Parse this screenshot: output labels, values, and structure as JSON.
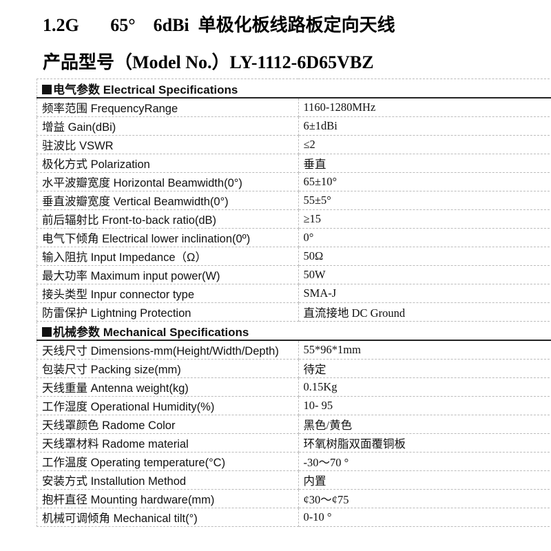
{
  "title_line1": "1.2G       65°    6dBi  单极化板线路板定向天线",
  "title_line2": "产品型号（Model No.）LY-1112-6D65VBZ",
  "electrical": {
    "header": "电气参数 Electrical Specifications",
    "rows": [
      {
        "label": "频率范围 FrequencyRange",
        "value": "1160-1280MHz"
      },
      {
        "label": "增益 Gain(dBi)",
        "value": "6±1dBi"
      },
      {
        "label": "驻波比 VSWR",
        "value": "≤2"
      },
      {
        "label": "极化方式 Polarization",
        "value": "垂直"
      },
      {
        "label": "水平波瓣宽度 Horizontal  Beamwidth(0°)",
        "value": "65±10°"
      },
      {
        "label": "垂直波瓣宽度 Vertical  Beamwidth(0°)",
        "value": "55±5°"
      },
      {
        "label": "前后辐射比 Front-to-back  ratio(dB)",
        "value": "≥15"
      },
      {
        "label": "电气下倾角 Electrical  lower  inclination(0º)",
        "value": "0°"
      },
      {
        "label": "输入阻抗 Input  Impedance（Ω）",
        "value": "50Ω"
      },
      {
        "label": "最大功率 Maximum  input  power(W)",
        "value": "50W"
      },
      {
        "label": "接头类型  Inpur  connector  type",
        "value": "SMA-J"
      },
      {
        "label": "防雷保护 Lightning  Protection",
        "value": "直流接地 DC  Ground"
      }
    ]
  },
  "mechanical": {
    "header": "机械参数 Mechanical Specifications",
    "rows": [
      {
        "label": "天线尺寸 Dimensions-mm(Height/Width/Depth)",
        "value": "55*96*1mm"
      },
      {
        "label": "包装尺寸 Packing  size(mm)",
        "value": "待定"
      },
      {
        "label": "天线重量 Antenna  weight(kg)",
        "value": "0.15Kg"
      },
      {
        "label": "工作湿度 Operational  Humidity(%)",
        "value": "10- 95"
      },
      {
        "label": "天线罩颜色 Radome  Color",
        "value": "黑色/黄色"
      },
      {
        "label": "天线罩材料  Radome  material",
        "value": "环氧树脂双面覆铜板"
      },
      {
        "label": "工作温度 Operating  temperature(°C)",
        "value": "-30～70 °"
      },
      {
        "label": "安装方式 Installution  Method",
        "value": "内置"
      },
      {
        "label": "抱杆直径 Mounting  hardware(mm)",
        "value": "¢30～¢75"
      },
      {
        "label": "机械可调倾角 Mechanical  tilt(°)",
        "value": "0-10 °"
      }
    ]
  }
}
